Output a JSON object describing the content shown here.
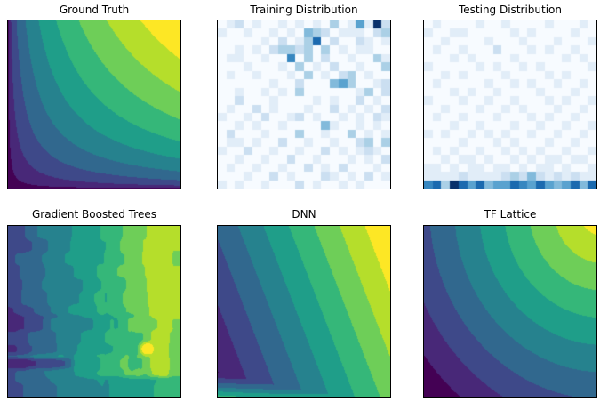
{
  "figure": {
    "background": "#ffffff",
    "axis_border_color": "#000000",
    "title_color": "#000000"
  },
  "palettes": {
    "viridis_bands": [
      "#440154",
      "#482878",
      "#3e4989",
      "#31688e",
      "#26828e",
      "#1f9e89",
      "#35b779",
      "#6ece58",
      "#b5de2b",
      "#fde725"
    ],
    "blues_stops": [
      "#f7fbff",
      "#deebf7",
      "#c6dbef",
      "#9ecae1",
      "#6baed6",
      "#4292c6",
      "#2171b5",
      "#08519c",
      "#08306b"
    ]
  },
  "chart_data": [
    {
      "id": "ground-truth",
      "title": "Ground Truth",
      "type": "heatmap",
      "subtype": "filled-contour",
      "colormap": "viridis",
      "n_bands": 10,
      "axes_ticks": "none",
      "surface": {
        "kind": "product_power",
        "power": 0.4,
        "description": "z rises from dark purple at bottom-left to yellow at top-right; contour bands are hyperbola-shaped (z ~ (x*y)^0.4)"
      }
    },
    {
      "id": "training-distribution",
      "title": "Training Distribution",
      "type": "heatmap",
      "subtype": "2d-histogram",
      "colormap": "Blues",
      "grid_size": [
        20,
        20
      ],
      "max_count": 9,
      "rows": [
        "01201001010103015192",
        "10010010104320111023",
        "00000102013702002101",
        "00101023323030101100",
        "01100100603020010031",
        "00010001030102001003",
        "01001000103010230100",
        "00000010020004530012",
        "00100101030000001302",
        "00200010000101002010",
        "01002010001002010102",
        "10010200120100101021",
        "00101001000041001010",
        "02000100030010030101",
        "01101002001001002303",
        "10020010010020101210",
        "00100100200100010102",
        "01001001002010200010",
        "00010020100021010201",
        "10100100020100101000"
      ]
    },
    {
      "id": "testing-distribution",
      "title": "Testing Distribution",
      "type": "heatmap",
      "subtype": "2d-histogram",
      "colormap": "Blues",
      "grid_size": [
        20,
        20
      ],
      "max_count": 9,
      "rows": [
        "01000010010000100010",
        "10011000001010000100",
        "00100001000100010001",
        "01001000200010100100",
        "00010100001000001010",
        "10000010100101000001",
        "00101000010000101000",
        "01000001001010010010",
        "00010100100001000100",
        "10001001001000101001",
        "00100010010100010010",
        "01001000100010100100",
        "00010010001001001001",
        "10100101010010010010",
        "00001000101000100100",
        "01010010010101001001",
        "00101101001010110110",
        "11010110110101101001",
        "11112111123242121211",
        "67397574557657545747"
      ]
    },
    {
      "id": "gradient-boosted-trees",
      "title": "Gradient Boosted Trees",
      "type": "heatmap",
      "subtype": "filled-contour",
      "colormap": "viridis",
      "n_bands": 10,
      "surface": {
        "kind": "blocky_steps",
        "description": "piecewise-constant tree surface: blocky vertical bands from dark blue (left) to yellow-green (right), purple streak at lower left, bright spot near right-center, dark bottom rows",
        "base": 0.26,
        "range": 0.6,
        "x0": 0.02,
        "span": 0.88,
        "wiggle": 0.07,
        "jitter": 0.05,
        "block_rows": 13,
        "block_cols": 9,
        "smooth": true,
        "features": [
          {
            "rect": [
              0,
              0.78,
              0.52,
              0.75
            ],
            "dz": -0.045
          },
          {
            "rect": [
              0,
              0.22,
              0.47,
              0.62
            ],
            "dz": -0.05
          },
          {
            "rect": [
              0,
              0.37,
              0.775,
              0.835
            ],
            "dz": -0.17
          },
          {
            "rect": [
              0,
              0.33,
              0.755,
              0.775
            ],
            "dz": 0.1
          },
          {
            "rect": [
              0.7,
              0.82,
              0.62,
              0.9
            ],
            "dz": -0.07
          },
          {
            "rect": [
              0.93,
              1.0,
              0.62,
              0.9
            ],
            "dz": -0.07
          },
          {
            "rect": [
              0.945,
              1.0,
              0.0,
              1.0
            ],
            "dz": -0.05
          }
        ],
        "spot": [
          0.8,
          0.72,
          0.05,
          0.05,
          0.3
        ],
        "bottom_cap": {
          "y": 0.885,
          "a": 0.3,
          "b": 0.36
        }
      }
    },
    {
      "id": "dnn",
      "title": "DNN",
      "type": "heatmap",
      "subtype": "filled-contour",
      "colormap": "viridis",
      "n_bands": 10,
      "surface": {
        "kind": "tilted_plane_fan",
        "description": "steep diagonal bands increasing toward top-right (yellow corner); fan-shaped extrapolation artifact along bottom edge with green strip at bottom-left",
        "base": 0.06,
        "x_coef": 0.68,
        "y_coef": 0.26,
        "fan_start": 0.8,
        "fan_a": [
          0.64,
          -0.3,
          0.3
        ],
        "fan_exp": 1.5
      }
    },
    {
      "id": "tf-lattice",
      "title": "TF Lattice",
      "type": "heatmap",
      "subtype": "filled-contour",
      "colormap": "viridis",
      "n_bands": 10,
      "surface": {
        "kind": "corner_radial",
        "description": "smooth concentric bands centered at top-right corner: tiny yellow sliver at corner, broad light-green plateau, dark purple at bottom-left corner",
        "center": [
          1.04,
          -0.1
        ],
        "scale": [
          0.62,
          0.56
        ],
        "gain": 1.12
      }
    }
  ]
}
